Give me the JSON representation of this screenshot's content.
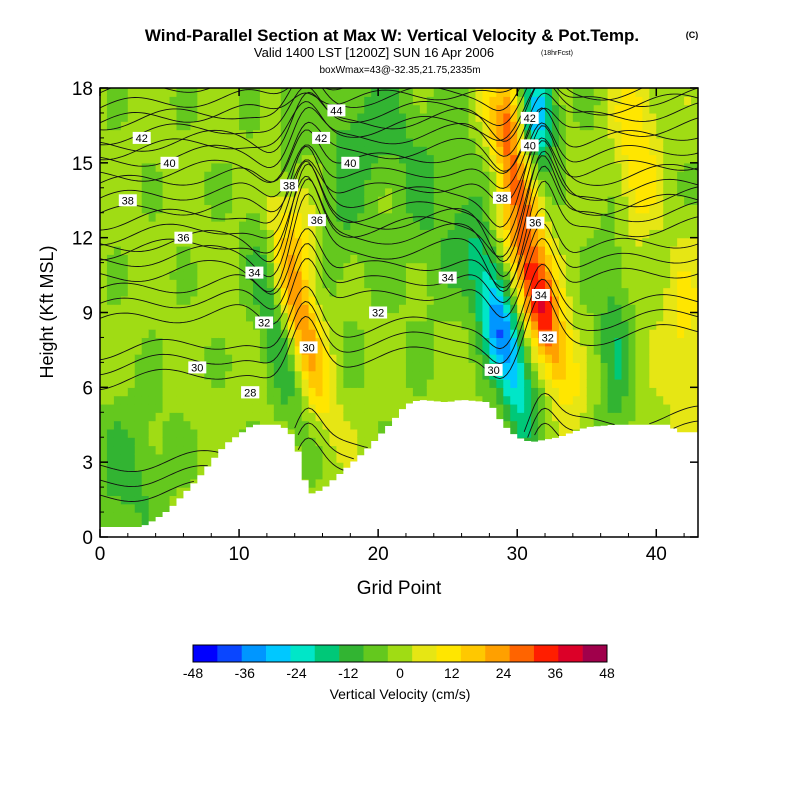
{
  "title": "Wind-Parallel Section at Max W: Vertical Velocity & Pot.Temp.",
  "title_mark": "(C)",
  "subtitle": "Valid 1400 LST [1200Z] SUN 16 Apr 2006",
  "subtitle_note": "(18hrFcst)",
  "info_line": "boxWmax=43@-32.35,21.75,2335m",
  "chart_data": {
    "type": "heatmap",
    "xlabel": "Grid Point",
    "ylabel": "Height (Kft MSL)",
    "xlim": [
      0,
      43
    ],
    "ylim": [
      0,
      18
    ],
    "x_ticks": [
      "0",
      "10",
      "20",
      "30",
      "40"
    ],
    "y_ticks": [
      "0",
      "3",
      "6",
      "9",
      "12",
      "15",
      "18"
    ],
    "colorbar": {
      "label": "Vertical Velocity (cm/s)",
      "tick_labels": [
        "-48",
        "-36",
        "-24",
        "-12",
        "0",
        "12",
        "24",
        "36",
        "48"
      ],
      "levels": [
        -48,
        -42,
        -36,
        -30,
        -24,
        -18,
        -12,
        -6,
        0,
        6,
        12,
        18,
        24,
        30,
        36,
        42,
        48
      ],
      "colors": [
        "#0000ff",
        "#0a46ff",
        "#0096ff",
        "#00c8ff",
        "#00e6c8",
        "#00c878",
        "#32b432",
        "#64c81e",
        "#a0dc14",
        "#e6e614",
        "#ffe600",
        "#ffc800",
        "#ffa000",
        "#ff6400",
        "#ff1e00",
        "#dc0028",
        "#a0004b"
      ]
    },
    "w_features": [
      {
        "x": 14.5,
        "z": 8.5,
        "w": 26,
        "sx": 0.9,
        "sz": 2.6,
        "tilt": -0.45
      },
      {
        "x": 14.0,
        "z": 12.5,
        "w": 14,
        "sx": 1.0,
        "sz": 2.0,
        "tilt": -0.3
      },
      {
        "x": 31.5,
        "z": 9.5,
        "w": 40,
        "sx": 1.0,
        "sz": 2.6,
        "tilt": -0.5
      },
      {
        "x": 30.0,
        "z": 14.5,
        "w": 22,
        "sx": 0.9,
        "sz": 2.2,
        "tilt": -0.5
      },
      {
        "x": 29.5,
        "z": 17.0,
        "w": 22,
        "sx": 0.8,
        "sz": 1.2,
        "tilt": 0
      },
      {
        "x": 29.0,
        "z": 8.0,
        "w": -38,
        "sx": 1.0,
        "sz": 2.6,
        "tilt": -0.45
      },
      {
        "x": 31.5,
        "z": 17.0,
        "w": -32,
        "sx": 0.9,
        "sz": 1.4,
        "tilt": 0
      },
      {
        "x": 12.5,
        "z": 9.0,
        "w": -14,
        "sx": 0.9,
        "sz": 3.2,
        "tilt": -0.3
      },
      {
        "x": 13.5,
        "z": 16.0,
        "w": -10,
        "sx": 0.7,
        "sz": 2.0,
        "tilt": 0
      },
      {
        "x": 38.5,
        "z": 15.5,
        "w": 16,
        "sx": 1.1,
        "sz": 2.6,
        "tilt": 0
      },
      {
        "x": 37.0,
        "z": 8.0,
        "w": -12,
        "sx": 0.9,
        "sz": 3.5,
        "tilt": 0
      },
      {
        "x": 24.0,
        "z": 13.5,
        "w": -8,
        "sx": 2.5,
        "sz": 3.0,
        "tilt": 0
      },
      {
        "x": 17.5,
        "z": 14.0,
        "w": -8,
        "sx": 1.5,
        "sz": 3.0,
        "tilt": 0
      },
      {
        "x": 42.0,
        "z": 8.0,
        "w": 12,
        "sx": 1.2,
        "sz": 2.5,
        "tilt": 0
      },
      {
        "x": 2.0,
        "z": 2.5,
        "w": -10,
        "sx": 2.0,
        "sz": 2.0,
        "tilt": 0
      },
      {
        "x": 20.0,
        "z": 16.5,
        "w": -8,
        "sx": 2.0,
        "sz": 1.5,
        "tilt": 0
      }
    ],
    "terrain_kft": [
      {
        "x": 0,
        "z": 0.4
      },
      {
        "x": 3,
        "z": 0.4
      },
      {
        "x": 4,
        "z": 0.7
      },
      {
        "x": 5,
        "z": 1.1
      },
      {
        "x": 6,
        "z": 1.7
      },
      {
        "x": 7,
        "z": 2.3
      },
      {
        "x": 8,
        "z": 3.0
      },
      {
        "x": 9,
        "z": 3.7
      },
      {
        "x": 11,
        "z": 4.5
      },
      {
        "x": 13,
        "z": 4.5
      },
      {
        "x": 14,
        "z": 4.0
      },
      {
        "x": 15,
        "z": 1.7
      },
      {
        "x": 16,
        "z": 1.9
      },
      {
        "x": 17,
        "z": 2.4
      },
      {
        "x": 18,
        "z": 2.9
      },
      {
        "x": 19,
        "z": 3.4
      },
      {
        "x": 20,
        "z": 4.0
      },
      {
        "x": 21,
        "z": 4.6
      },
      {
        "x": 22,
        "z": 5.3
      },
      {
        "x": 23,
        "z": 5.5
      },
      {
        "x": 25,
        "z": 5.4
      },
      {
        "x": 26,
        "z": 5.5
      },
      {
        "x": 28,
        "z": 5.4
      },
      {
        "x": 29,
        "z": 4.5
      },
      {
        "x": 30,
        "z": 4.0
      },
      {
        "x": 31,
        "z": 3.8
      },
      {
        "x": 33,
        "z": 4.0
      },
      {
        "x": 35,
        "z": 4.4
      },
      {
        "x": 37,
        "z": 4.5
      },
      {
        "x": 41,
        "z": 4.5
      },
      {
        "x": 41.5,
        "z": 4.2
      },
      {
        "x": 43,
        "z": 4.2
      }
    ],
    "theta_contours": [
      {
        "level": 28,
        "z_left": 2.2,
        "label": "28",
        "label_x": 10.8,
        "label_z": 5.8
      },
      {
        "level": 30,
        "z_left": 6.8,
        "label": "30",
        "label_x": 7.0,
        "label_z": 6.8
      },
      {
        "level": 32,
        "z_left": 9.2,
        "label": "32",
        "label_x": 20.0,
        "label_z": 9.0
      },
      {
        "level": 34,
        "z_left": 11.0,
        "label": "34",
        "label_x": 25.0,
        "label_z": 10.4
      },
      {
        "level": 36,
        "z_left": 12.0,
        "label": "36",
        "label_x": 6.0,
        "label_z": 12.0
      },
      {
        "level": 38,
        "z_left": 13.5,
        "label": "38",
        "label_x": 2.0,
        "label_z": 13.5
      },
      {
        "level": 40,
        "z_left": 15.0,
        "label": "40",
        "label_x": 5.0,
        "label_z": 15.0
      },
      {
        "level": 42,
        "z_left": 16.0,
        "label": "42",
        "label_x": 3.0,
        "label_z": 16.0
      },
      {
        "level": 44,
        "z_left": 17.2,
        "label": "44",
        "label_x": 17.0,
        "label_z": 17.1
      }
    ],
    "theta_extra_labels": [
      {
        "label": "28",
        "x": 10.8,
        "z": 5.8
      },
      {
        "label": "30",
        "x": 15.0,
        "z": 7.6
      },
      {
        "label": "30",
        "x": 28.3,
        "z": 6.7
      },
      {
        "label": "32",
        "x": 11.8,
        "z": 8.6
      },
      {
        "label": "32",
        "x": 32.2,
        "z": 8.0
      },
      {
        "label": "34",
        "x": 11.1,
        "z": 10.6
      },
      {
        "label": "34",
        "x": 31.7,
        "z": 9.7
      },
      {
        "label": "36",
        "x": 15.6,
        "z": 12.7
      },
      {
        "label": "36",
        "x": 31.3,
        "z": 12.6
      },
      {
        "label": "38",
        "x": 13.6,
        "z": 14.1
      },
      {
        "label": "38",
        "x": 28.9,
        "z": 13.6
      },
      {
        "label": "40",
        "x": 18.0,
        "z": 15.0
      },
      {
        "label": "40",
        "x": 30.9,
        "z": 15.7
      },
      {
        "label": "42",
        "x": 15.9,
        "z": 16.0
      },
      {
        "label": "42",
        "x": 30.9,
        "z": 16.8
      }
    ]
  }
}
